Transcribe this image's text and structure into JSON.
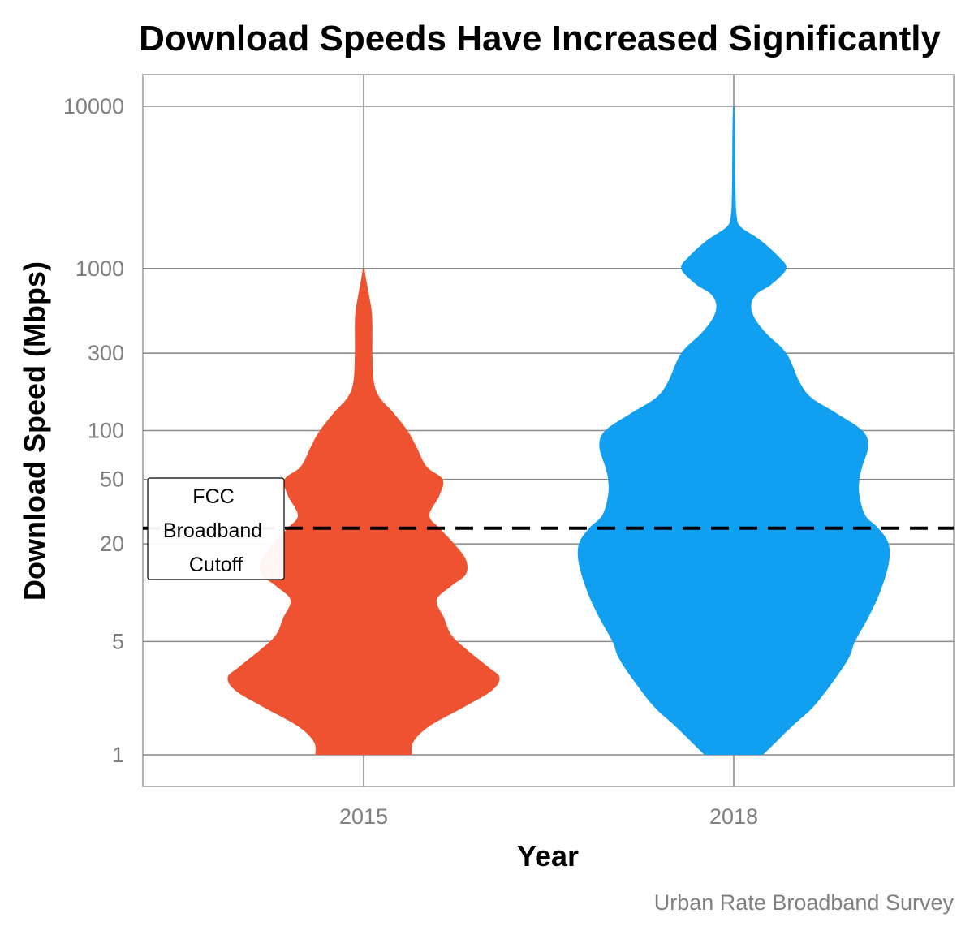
{
  "chart_data": {
    "type": "violin",
    "title": "Download Speeds Have Increased Significantly",
    "xlabel": "Year",
    "ylabel": "Download Speed (Mbps)",
    "caption": "Urban Rate Broadband Survey",
    "y_scale": "log10",
    "ylim": [
      0.65,
      15000
    ],
    "y_ticks": [
      1,
      5,
      20,
      50,
      100,
      300,
      1000,
      10000
    ],
    "y_tick_labels": [
      "1",
      "5",
      "20",
      "50",
      "100",
      "300",
      "1000",
      "10000"
    ],
    "categories": [
      "2015",
      "2018"
    ],
    "grid": true,
    "series": [
      {
        "category": "2015",
        "color": "#EE5230",
        "y_range": [
          1,
          1000
        ],
        "profile": [
          [
            1,
            0.33
          ],
          [
            1.2,
            0.34
          ],
          [
            1.5,
            0.45
          ],
          [
            2,
            0.7
          ],
          [
            2.5,
            0.88
          ],
          [
            3,
            0.93
          ],
          [
            3.5,
            0.85
          ],
          [
            4.5,
            0.7
          ],
          [
            5.5,
            0.6
          ],
          [
            7,
            0.55
          ],
          [
            9,
            0.5
          ],
          [
            11,
            0.6
          ],
          [
            13,
            0.7
          ],
          [
            16,
            0.7
          ],
          [
            20,
            0.62
          ],
          [
            25,
            0.52
          ],
          [
            30,
            0.45
          ],
          [
            40,
            0.52
          ],
          [
            50,
            0.54
          ],
          [
            60,
            0.43
          ],
          [
            80,
            0.36
          ],
          [
            100,
            0.3
          ],
          [
            130,
            0.2
          ],
          [
            160,
            0.11
          ],
          [
            200,
            0.07
          ],
          [
            300,
            0.06
          ],
          [
            450,
            0.06
          ],
          [
            550,
            0.055
          ],
          [
            700,
            0.035
          ],
          [
            850,
            0.018
          ],
          [
            1000,
            0.005
          ]
        ]
      },
      {
        "category": "2018",
        "color": "#119FF2",
        "y_range": [
          1,
          10000
        ],
        "profile": [
          [
            1,
            0.2
          ],
          [
            1.2,
            0.29
          ],
          [
            1.5,
            0.4
          ],
          [
            2,
            0.55
          ],
          [
            3,
            0.7
          ],
          [
            4,
            0.79
          ],
          [
            5,
            0.83
          ],
          [
            7,
            0.92
          ],
          [
            10,
            1.0
          ],
          [
            15,
            1.06
          ],
          [
            20,
            1.06
          ],
          [
            25,
            0.99
          ],
          [
            30,
            0.9
          ],
          [
            40,
            0.86
          ],
          [
            50,
            0.86
          ],
          [
            60,
            0.88
          ],
          [
            80,
            0.92
          ],
          [
            100,
            0.88
          ],
          [
            130,
            0.69
          ],
          [
            160,
            0.53
          ],
          [
            200,
            0.45
          ],
          [
            300,
            0.36
          ],
          [
            400,
            0.22
          ],
          [
            500,
            0.14
          ],
          [
            600,
            0.12
          ],
          [
            700,
            0.16
          ],
          [
            800,
            0.26
          ],
          [
            1000,
            0.36
          ],
          [
            1200,
            0.3
          ],
          [
            1500,
            0.18
          ],
          [
            1800,
            0.05
          ],
          [
            2100,
            0.02
          ],
          [
            3000,
            0.012
          ],
          [
            5000,
            0.01
          ],
          [
            8000,
            0.008
          ],
          [
            10000,
            0.005
          ]
        ]
      }
    ],
    "annotation": {
      "type": "hline",
      "y": 25,
      "lines": [
        "FCC",
        "Broadband",
        "Cutoff"
      ]
    }
  }
}
